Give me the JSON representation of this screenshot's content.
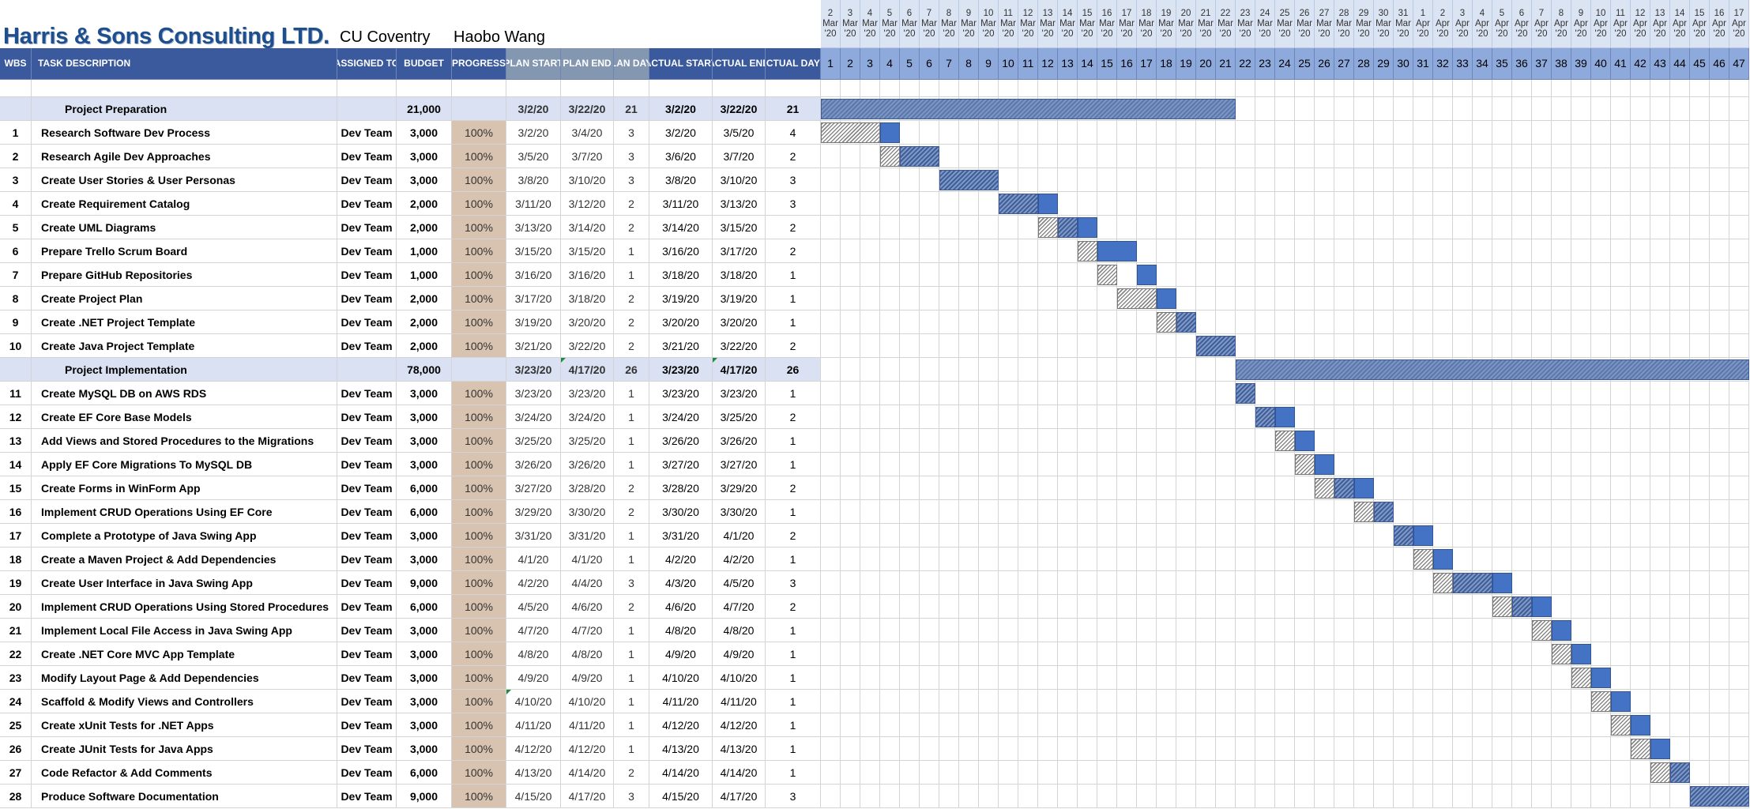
{
  "header": {
    "company": "Harris & Sons Consulting LTD.",
    "client": "CU Coventry",
    "manager": "Haobo Wang"
  },
  "columns": {
    "wbs": "WBS",
    "task": "TASK DESCRIPTION",
    "assigned": "ASSIGNED TO",
    "budget": "BUDGET",
    "progress": "PROGRESS",
    "plan_start": "PLAN START",
    "plan_end": "PLAN END",
    "plan_days": "PLAN DAYS",
    "actual_start": "ACTUAL START",
    "actual_end": "ACTUAL END",
    "actual_days": "ACTUAL DAYS"
  },
  "timeline": {
    "dates": [
      [
        "2",
        "Mar",
        "'20"
      ],
      [
        "3",
        "Mar",
        "'20"
      ],
      [
        "4",
        "Mar",
        "'20"
      ],
      [
        "5",
        "Mar",
        "'20"
      ],
      [
        "6",
        "Mar",
        "'20"
      ],
      [
        "7",
        "Mar",
        "'20"
      ],
      [
        "8",
        "Mar",
        "'20"
      ],
      [
        "9",
        "Mar",
        "'20"
      ],
      [
        "10",
        "Mar",
        "'20"
      ],
      [
        "11",
        "Mar",
        "'20"
      ],
      [
        "12",
        "Mar",
        "'20"
      ],
      [
        "13",
        "Mar",
        "'20"
      ],
      [
        "14",
        "Mar",
        "'20"
      ],
      [
        "15",
        "Mar",
        "'20"
      ],
      [
        "16",
        "Mar",
        "'20"
      ],
      [
        "17",
        "Mar",
        "'20"
      ],
      [
        "18",
        "Mar",
        "'20"
      ],
      [
        "19",
        "Mar",
        "'20"
      ],
      [
        "20",
        "Mar",
        "'20"
      ],
      [
        "21",
        "Mar",
        "'20"
      ],
      [
        "22",
        "Mar",
        "'20"
      ],
      [
        "23",
        "Mar",
        "'20"
      ],
      [
        "24",
        "Mar",
        "'20"
      ],
      [
        "25",
        "Mar",
        "'20"
      ],
      [
        "26",
        "Mar",
        "'20"
      ],
      [
        "27",
        "Mar",
        "'20"
      ],
      [
        "28",
        "Mar",
        "'20"
      ],
      [
        "29",
        "Mar",
        "'20"
      ],
      [
        "30",
        "Mar",
        "'20"
      ],
      [
        "31",
        "Mar",
        "'20"
      ],
      [
        "1",
        "Apr",
        "'20"
      ],
      [
        "2",
        "Apr",
        "'20"
      ],
      [
        "3",
        "Apr",
        "'20"
      ],
      [
        "4",
        "Apr",
        "'20"
      ],
      [
        "5",
        "Apr",
        "'20"
      ],
      [
        "6",
        "Apr",
        "'20"
      ],
      [
        "7",
        "Apr",
        "'20"
      ],
      [
        "8",
        "Apr",
        "'20"
      ],
      [
        "9",
        "Apr",
        "'20"
      ],
      [
        "10",
        "Apr",
        "'20"
      ],
      [
        "11",
        "Apr",
        "'20"
      ],
      [
        "12",
        "Apr",
        "'20"
      ],
      [
        "13",
        "Apr",
        "'20"
      ],
      [
        "14",
        "Apr",
        "'20"
      ],
      [
        "15",
        "Apr",
        "'20"
      ],
      [
        "16",
        "Apr",
        "'20"
      ],
      [
        "17",
        "Apr",
        "'20"
      ]
    ],
    "day_numbers": [
      "1",
      "2",
      "3",
      "4",
      "5",
      "6",
      "7",
      "8",
      "9",
      "10",
      "11",
      "12",
      "13",
      "14",
      "15",
      "16",
      "17",
      "18",
      "19",
      "20",
      "21",
      "22",
      "23",
      "24",
      "25",
      "26",
      "27",
      "28",
      "29",
      "30",
      "31",
      "32",
      "33",
      "34",
      "35",
      "36",
      "37",
      "38",
      "39",
      "40",
      "41",
      "42",
      "43",
      "44",
      "45",
      "46",
      "47"
    ]
  },
  "rows": [
    {
      "type": "phase",
      "wbs": "",
      "task": "Project Preparation",
      "assigned": "",
      "budget": "21,000",
      "progress": "",
      "plan_start": "3/2/20",
      "plan_end": "3/22/20",
      "plan_days": "21",
      "actual_start": "3/2/20",
      "actual_end": "3/22/20",
      "actual_days": "21",
      "gantt": {
        "phase": [
          1,
          21
        ]
      }
    },
    {
      "type": "task",
      "wbs": "1",
      "task": "Research Software Dev Process",
      "assigned": "Dev Team",
      "budget": "3,000",
      "progress": "100%",
      "plan_start": "3/2/20",
      "plan_end": "3/4/20",
      "plan_days": "3",
      "actual_start": "3/2/20",
      "actual_end": "3/5/20",
      "actual_days": "4",
      "gantt": {
        "plan": [
          1,
          3
        ],
        "actual": [
          4,
          4
        ]
      }
    },
    {
      "type": "task",
      "wbs": "2",
      "task": "Research Agile Dev Approaches",
      "assigned": "Dev Team",
      "budget": "3,000",
      "progress": "100%",
      "plan_start": "3/5/20",
      "plan_end": "3/7/20",
      "plan_days": "3",
      "actual_start": "3/6/20",
      "actual_end": "3/7/20",
      "actual_days": "2",
      "gantt": {
        "plan": [
          4,
          4
        ],
        "overlap": [
          5,
          6
        ]
      }
    },
    {
      "type": "task",
      "wbs": "3",
      "task": "Create User Stories & User Personas",
      "assigned": "Dev Team",
      "budget": "3,000",
      "progress": "100%",
      "plan_start": "3/8/20",
      "plan_end": "3/10/20",
      "plan_days": "3",
      "actual_start": "3/8/20",
      "actual_end": "3/10/20",
      "actual_days": "3",
      "gantt": {
        "overlap": [
          7,
          9
        ]
      }
    },
    {
      "type": "task",
      "wbs": "4",
      "task": "Create Requirement Catalog",
      "assigned": "Dev Team",
      "budget": "2,000",
      "progress": "100%",
      "plan_start": "3/11/20",
      "plan_end": "3/12/20",
      "plan_days": "2",
      "actual_start": "3/11/20",
      "actual_end": "3/13/20",
      "actual_days": "3",
      "gantt": {
        "overlap": [
          10,
          11
        ],
        "actual": [
          12,
          12
        ]
      }
    },
    {
      "type": "task",
      "wbs": "5",
      "task": "Create UML Diagrams",
      "assigned": "Dev Team",
      "budget": "2,000",
      "progress": "100%",
      "plan_start": "3/13/20",
      "plan_end": "3/14/20",
      "plan_days": "2",
      "actual_start": "3/14/20",
      "actual_end": "3/15/20",
      "actual_days": "2",
      "gantt": {
        "plan": [
          12,
          12
        ],
        "overlap": [
          13,
          13
        ],
        "actual": [
          14,
          14
        ]
      }
    },
    {
      "type": "task",
      "wbs": "6",
      "task": "Prepare Trello Scrum Board",
      "assigned": "Dev Team",
      "budget": "1,000",
      "progress": "100%",
      "plan_start": "3/15/20",
      "plan_end": "3/15/20",
      "plan_days": "1",
      "actual_start": "3/16/20",
      "actual_end": "3/17/20",
      "actual_days": "2",
      "gantt": {
        "plan": [
          14,
          14
        ],
        "actual": [
          15,
          16
        ]
      }
    },
    {
      "type": "task",
      "wbs": "7",
      "task": "Prepare GitHub Repositories",
      "assigned": "Dev Team",
      "budget": "1,000",
      "progress": "100%",
      "plan_start": "3/16/20",
      "plan_end": "3/16/20",
      "plan_days": "1",
      "actual_start": "3/18/20",
      "actual_end": "3/18/20",
      "actual_days": "1",
      "gantt": {
        "plan": [
          15,
          15
        ],
        "actual": [
          17,
          17
        ]
      }
    },
    {
      "type": "task",
      "wbs": "8",
      "task": "Create Project Plan",
      "assigned": "Dev Team",
      "budget": "2,000",
      "progress": "100%",
      "plan_start": "3/17/20",
      "plan_end": "3/18/20",
      "plan_days": "2",
      "actual_start": "3/19/20",
      "actual_end": "3/19/20",
      "actual_days": "1",
      "gantt": {
        "plan": [
          16,
          17
        ],
        "actual": [
          18,
          18
        ]
      }
    },
    {
      "type": "task",
      "wbs": "9",
      "task": "Create .NET Project Template",
      "assigned": "Dev Team",
      "budget": "2,000",
      "progress": "100%",
      "plan_start": "3/19/20",
      "plan_end": "3/20/20",
      "plan_days": "2",
      "actual_start": "3/20/20",
      "actual_end": "3/20/20",
      "actual_days": "1",
      "gantt": {
        "plan": [
          18,
          18
        ],
        "overlap": [
          19,
          19
        ]
      }
    },
    {
      "type": "task",
      "wbs": "10",
      "task": "Create Java Project Template",
      "assigned": "Dev Team",
      "budget": "2,000",
      "progress": "100%",
      "plan_start": "3/21/20",
      "plan_end": "3/22/20",
      "plan_days": "2",
      "actual_start": "3/21/20",
      "actual_end": "3/22/20",
      "actual_days": "2",
      "gantt": {
        "overlap": [
          20,
          21
        ]
      }
    },
    {
      "type": "phase",
      "wbs": "",
      "task": "Project Implementation",
      "assigned": "",
      "budget": "78,000",
      "progress": "",
      "plan_start": "3/23/20",
      "plan_end": "4/17/20",
      "plan_days": "26",
      "actual_start": "3/23/20",
      "actual_end": "4/17/20",
      "actual_days": "26",
      "gantt": {
        "phase": [
          22,
          47
        ]
      }
    },
    {
      "type": "task",
      "wbs": "11",
      "task": "Create MySQL DB on AWS RDS",
      "assigned": "Dev Team",
      "budget": "3,000",
      "progress": "100%",
      "plan_start": "3/23/20",
      "plan_end": "3/23/20",
      "plan_days": "1",
      "actual_start": "3/23/20",
      "actual_end": "3/23/20",
      "actual_days": "1",
      "gantt": {
        "overlap": [
          22,
          22
        ]
      }
    },
    {
      "type": "task",
      "wbs": "12",
      "task": "Create EF Core Base Models",
      "assigned": "Dev Team",
      "budget": "3,000",
      "progress": "100%",
      "plan_start": "3/24/20",
      "plan_end": "3/24/20",
      "plan_days": "1",
      "actual_start": "3/24/20",
      "actual_end": "3/25/20",
      "actual_days": "2",
      "gantt": {
        "overlap": [
          23,
          23
        ],
        "actual": [
          24,
          24
        ]
      }
    },
    {
      "type": "task",
      "wbs": "13",
      "task": "Add Views and Stored Procedures to the Migrations",
      "assigned": "Dev Team",
      "budget": "3,000",
      "progress": "100%",
      "plan_start": "3/25/20",
      "plan_end": "3/25/20",
      "plan_days": "1",
      "actual_start": "3/26/20",
      "actual_end": "3/26/20",
      "actual_days": "1",
      "gantt": {
        "plan": [
          24,
          24
        ],
        "actual": [
          25,
          25
        ]
      }
    },
    {
      "type": "task",
      "wbs": "14",
      "task": "Apply EF Core Migrations To MySQL DB",
      "assigned": "Dev Team",
      "budget": "3,000",
      "progress": "100%",
      "plan_start": "3/26/20",
      "plan_end": "3/26/20",
      "plan_days": "1",
      "actual_start": "3/27/20",
      "actual_end": "3/27/20",
      "actual_days": "1",
      "gantt": {
        "plan": [
          25,
          25
        ],
        "actual": [
          26,
          26
        ]
      }
    },
    {
      "type": "task",
      "wbs": "15",
      "task": "Create Forms in WinForm App",
      "assigned": "Dev Team",
      "budget": "6,000",
      "progress": "100%",
      "plan_start": "3/27/20",
      "plan_end": "3/28/20",
      "plan_days": "2",
      "actual_start": "3/28/20",
      "actual_end": "3/29/20",
      "actual_days": "2",
      "gantt": {
        "plan": [
          26,
          26
        ],
        "overlap": [
          27,
          27
        ],
        "actual": [
          28,
          28
        ]
      }
    },
    {
      "type": "task",
      "wbs": "16",
      "task": "Implement CRUD Operations Using EF Core",
      "assigned": "Dev Team",
      "budget": "6,000",
      "progress": "100%",
      "plan_start": "3/29/20",
      "plan_end": "3/30/20",
      "plan_days": "2",
      "actual_start": "3/30/20",
      "actual_end": "3/30/20",
      "actual_days": "1",
      "gantt": {
        "plan": [
          28,
          28
        ],
        "overlap": [
          29,
          29
        ]
      }
    },
    {
      "type": "task",
      "wbs": "17",
      "task": "Complete a Prototype of Java Swing App",
      "assigned": "Dev Team",
      "budget": "3,000",
      "progress": "100%",
      "plan_start": "3/31/20",
      "plan_end": "3/31/20",
      "plan_days": "1",
      "actual_start": "3/31/20",
      "actual_end": "4/1/20",
      "actual_days": "2",
      "gantt": {
        "overlap": [
          30,
          30
        ],
        "actual": [
          31,
          31
        ]
      }
    },
    {
      "type": "task",
      "wbs": "18",
      "task": "Create a Maven Project & Add Dependencies",
      "assigned": "Dev Team",
      "budget": "3,000",
      "progress": "100%",
      "plan_start": "4/1/20",
      "plan_end": "4/1/20",
      "plan_days": "1",
      "actual_start": "4/2/20",
      "actual_end": "4/2/20",
      "actual_days": "1",
      "gantt": {
        "plan": [
          31,
          31
        ],
        "actual": [
          32,
          32
        ]
      }
    },
    {
      "type": "task",
      "wbs": "19",
      "task": "Create User Interface in Java Swing App",
      "assigned": "Dev Team",
      "budget": "9,000",
      "progress": "100%",
      "plan_start": "4/2/20",
      "plan_end": "4/4/20",
      "plan_days": "3",
      "actual_start": "4/3/20",
      "actual_end": "4/5/20",
      "actual_days": "3",
      "gantt": {
        "plan": [
          32,
          32
        ],
        "overlap": [
          33,
          34
        ],
        "actual": [
          35,
          35
        ]
      }
    },
    {
      "type": "task",
      "wbs": "20",
      "task": "Implement CRUD Operations Using Stored Procedures",
      "assigned": "Dev Team",
      "budget": "6,000",
      "progress": "100%",
      "plan_start": "4/5/20",
      "plan_end": "4/6/20",
      "plan_days": "2",
      "actual_start": "4/6/20",
      "actual_end": "4/7/20",
      "actual_days": "2",
      "gantt": {
        "plan": [
          35,
          35
        ],
        "overlap": [
          36,
          36
        ],
        "actual": [
          37,
          37
        ]
      }
    },
    {
      "type": "task",
      "wbs": "21",
      "task": "Implement Local File Access in Java Swing App",
      "assigned": "Dev Team",
      "budget": "3,000",
      "progress": "100%",
      "plan_start": "4/7/20",
      "plan_end": "4/7/20",
      "plan_days": "1",
      "actual_start": "4/8/20",
      "actual_end": "4/8/20",
      "actual_days": "1",
      "gantt": {
        "plan": [
          37,
          37
        ],
        "actual": [
          38,
          38
        ]
      }
    },
    {
      "type": "task",
      "wbs": "22",
      "task": "Create .NET Core MVC App Template",
      "assigned": "Dev Team",
      "budget": "3,000",
      "progress": "100%",
      "plan_start": "4/8/20",
      "plan_end": "4/8/20",
      "plan_days": "1",
      "actual_start": "4/9/20",
      "actual_end": "4/9/20",
      "actual_days": "1",
      "gantt": {
        "plan": [
          38,
          38
        ],
        "actual": [
          39,
          39
        ]
      }
    },
    {
      "type": "task",
      "wbs": "23",
      "task": "Modify Layout Page & Add Dependencies",
      "assigned": "Dev Team",
      "budget": "3,000",
      "progress": "100%",
      "plan_start": "4/9/20",
      "plan_end": "4/9/20",
      "plan_days": "1",
      "actual_start": "4/10/20",
      "actual_end": "4/10/20",
      "actual_days": "1",
      "gantt": {
        "plan": [
          39,
          39
        ],
        "actual": [
          40,
          40
        ]
      }
    },
    {
      "type": "task",
      "wbs": "24",
      "task": "Scaffold & Modify Views and Controllers",
      "assigned": "Dev Team",
      "budget": "3,000",
      "progress": "100%",
      "plan_start": "4/10/20",
      "plan_end": "4/10/20",
      "plan_days": "1",
      "actual_start": "4/11/20",
      "actual_end": "4/11/20",
      "actual_days": "1",
      "gantt": {
        "plan": [
          40,
          40
        ],
        "actual": [
          41,
          41
        ]
      }
    },
    {
      "type": "task",
      "wbs": "25",
      "task": "Create xUnit Tests for .NET Apps",
      "assigned": "Dev Team",
      "budget": "3,000",
      "progress": "100%",
      "plan_start": "4/11/20",
      "plan_end": "4/11/20",
      "plan_days": "1",
      "actual_start": "4/12/20",
      "actual_end": "4/12/20",
      "actual_days": "1",
      "gantt": {
        "plan": [
          41,
          41
        ],
        "actual": [
          42,
          42
        ]
      }
    },
    {
      "type": "task",
      "wbs": "26",
      "task": "Create JUnit Tests for Java Apps",
      "assigned": "Dev Team",
      "budget": "3,000",
      "progress": "100%",
      "plan_start": "4/12/20",
      "plan_end": "4/12/20",
      "plan_days": "1",
      "actual_start": "4/13/20",
      "actual_end": "4/13/20",
      "actual_days": "1",
      "gantt": {
        "plan": [
          42,
          42
        ],
        "actual": [
          43,
          43
        ]
      }
    },
    {
      "type": "task",
      "wbs": "27",
      "task": "Code Refactor & Add Comments",
      "assigned": "Dev Team",
      "budget": "6,000",
      "progress": "100%",
      "plan_start": "4/13/20",
      "plan_end": "4/14/20",
      "plan_days": "2",
      "actual_start": "4/14/20",
      "actual_end": "4/14/20",
      "actual_days": "1",
      "gantt": {
        "plan": [
          43,
          43
        ],
        "overlap": [
          44,
          44
        ]
      }
    },
    {
      "type": "task",
      "wbs": "28",
      "task": "Produce Software Documentation",
      "assigned": "Dev Team",
      "budget": "9,000",
      "progress": "100%",
      "plan_start": "4/15/20",
      "plan_end": "4/17/20",
      "plan_days": "3",
      "actual_start": "4/15/20",
      "actual_end": "4/17/20",
      "actual_days": "3",
      "gantt": {
        "overlap": [
          45,
          47
        ]
      }
    }
  ],
  "colors": {
    "header_bg": "#3b5a9d",
    "plan_header_bg": "#8497b0",
    "progress_bg": "#d7c3af",
    "phase_row_bg": "#d9e1f2",
    "actual_bar": "#4472c4"
  }
}
